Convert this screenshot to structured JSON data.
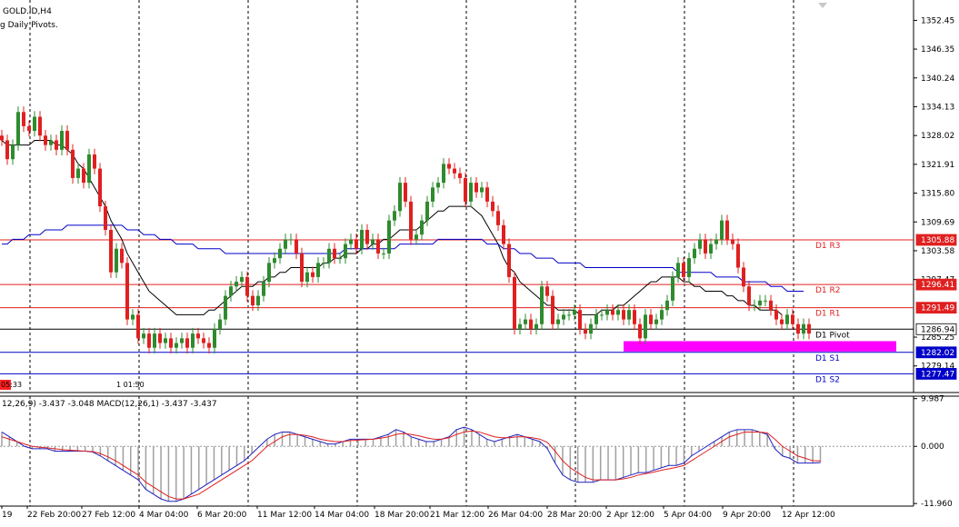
{
  "header": {
    "symbol": "GOLD.ID,H4",
    "indicator": "g Daily Pivots."
  },
  "status_labels": {
    "timer": "05:33",
    "bar_timer": "1 01:50",
    "macd_header": "12,26,9) -3.437 -3.048 MACD(12,26,1) -3.437 -3.437"
  },
  "colors": {
    "bull": "#2e8b2e",
    "bear": "#e02020",
    "ma_fast": "#000000",
    "ma_slow": "#0000c8",
    "resistance": "#e02020",
    "support": "#0000c8",
    "pivot": "#000000",
    "zone": "#ff00ff",
    "grid": "#000000",
    "macd_line": "#2020c0",
    "signal_line": "#e02020",
    "histogram": "#a0a0a0"
  },
  "chart_data": [
    {
      "type": "candlestick",
      "title": "GOLD.ID,H4",
      "subtitle": "g Daily Pivots.",
      "ylim": [
        1273.5,
        1356.0
      ],
      "y_ticks": [
        1352.45,
        1346.35,
        1340.24,
        1334.13,
        1328.02,
        1321.91,
        1315.8,
        1309.69,
        1303.58,
        1297.47,
        1285.25,
        1279.14
      ],
      "x_tick_labels": [
        "19",
        "22 Feb 20:00",
        "27 Feb 12:00",
        "4 Mar 04:00",
        "6 Mar 20:00",
        "11 Mar 12:00",
        "14 Mar 04:00",
        "18 Mar 20:00",
        "21 Mar 12:00",
        "26 Mar 04:00",
        "28 Mar 20:00",
        "2 Apr 12:00",
        "5 Apr 04:00",
        "9 Apr 20:00",
        "12 Apr 12:00"
      ],
      "price_labels": [
        {
          "label": "1305.88",
          "value": 1305.88,
          "kind": "resistance"
        },
        {
          "label": "1296.41",
          "value": 1296.41,
          "kind": "resistance"
        },
        {
          "label": "1291.49",
          "value": 1291.49,
          "kind": "resistance"
        },
        {
          "label": "1286.94",
          "value": 1286.94,
          "kind": "current"
        },
        {
          "label": "1282.02",
          "value": 1282.02,
          "kind": "support"
        },
        {
          "label": "1277.47",
          "value": 1277.47,
          "kind": "support"
        }
      ],
      "pivot_levels": [
        {
          "name": "D1 R3",
          "value": 1305.88,
          "kind": "resistance"
        },
        {
          "name": "D1 R2",
          "value": 1296.41,
          "kind": "resistance"
        },
        {
          "name": "D1 R1",
          "value": 1291.49,
          "kind": "resistance"
        },
        {
          "name": "D1 Pivot",
          "value": 1286.94,
          "kind": "pivot"
        },
        {
          "name": "D1 S1",
          "value": 1282.02,
          "kind": "support"
        },
        {
          "name": "D1 S2",
          "value": 1277.47,
          "kind": "support"
        }
      ],
      "support_zone": {
        "from_index": 114,
        "to_index": 164,
        "low": 1282.2,
        "high": 1284.4
      },
      "candles_close": [
        1327,
        1323,
        1326,
        1333,
        1330,
        1329,
        1332,
        1328,
        1326,
        1327,
        1325,
        1329,
        1325,
        1319,
        1321,
        1318,
        1324,
        1321,
        1313,
        1308,
        1299,
        1304,
        1301,
        1289,
        1290,
        1285,
        1286,
        1283,
        1286,
        1284,
        1285,
        1283,
        1284,
        1285,
        1283,
        1286,
        1285,
        1284,
        1283,
        1287,
        1289,
        1294,
        1296,
        1297,
        1298,
        1294,
        1292,
        1294,
        1297,
        1301,
        1302,
        1304,
        1306,
        1306,
        1303,
        1297,
        1299,
        1298,
        1301,
        1301,
        1304,
        1302,
        1302,
        1305,
        1306,
        1304,
        1308,
        1305,
        1306,
        1303,
        1303,
        1310,
        1312,
        1318,
        1314,
        1306,
        1307,
        1310,
        1314,
        1317,
        1318,
        1322,
        1321,
        1320,
        1319,
        1314,
        1318,
        1316,
        1317,
        1314,
        1312,
        1309,
        1305,
        1298,
        1287,
        1288,
        1289,
        1287,
        1288,
        1296,
        1294,
        1288,
        1289,
        1290,
        1290,
        1291,
        1287,
        1286,
        1288,
        1290,
        1290,
        1291,
        1290,
        1291,
        1289,
        1291,
        1288,
        1285,
        1290,
        1288,
        1289,
        1291,
        1293,
        1298,
        1301,
        1298,
        1302,
        1304,
        1306,
        1303,
        1305,
        1306,
        1310,
        1306,
        1305,
        1300,
        1296,
        1292,
        1292,
        1293,
        1293,
        1291,
        1289,
        1288,
        1290,
        1288,
        1286,
        1288,
        1286
      ],
      "series": [
        {
          "name": "MA fast",
          "values": [
            1327,
            1326,
            1326,
            1326,
            1326,
            1326,
            1327,
            1327,
            1327,
            1327,
            1326,
            1326,
            1325,
            1324,
            1322,
            1321,
            1319,
            1317,
            1315,
            1313,
            1310,
            1308,
            1306,
            1303,
            1301,
            1299,
            1297,
            1295,
            1294,
            1293,
            1292,
            1291,
            1290,
            1290,
            1290,
            1290,
            1290,
            1290,
            1291,
            1291,
            1292,
            1293,
            1294,
            1295,
            1296,
            1296,
            1296,
            1297,
            1297,
            1298,
            1298,
            1299,
            1299,
            1300,
            1300,
            1300,
            1300,
            1300,
            1300,
            1301,
            1301,
            1302,
            1302,
            1303,
            1303,
            1303,
            1304,
            1304,
            1305,
            1305,
            1306,
            1306,
            1307,
            1308,
            1308,
            1308,
            1308,
            1309,
            1310,
            1311,
            1312,
            1312,
            1313,
            1313,
            1313,
            1313,
            1313,
            1312,
            1311,
            1309,
            1307,
            1305,
            1302,
            1300,
            1299,
            1297,
            1296,
            1295,
            1294,
            1293,
            1292,
            1292,
            1291,
            1291,
            1291,
            1291,
            1290,
            1290,
            1290,
            1290,
            1291,
            1291,
            1291,
            1292,
            1292,
            1293,
            1294,
            1295,
            1296,
            1297,
            1297,
            1298,
            1298,
            1298,
            1298,
            1297,
            1297,
            1296,
            1296,
            1295,
            1295,
            1295,
            1295,
            1294,
            1294,
            1293,
            1293,
            1292,
            1292,
            1291,
            1291,
            1291,
            1291,
            1290
          ]
        },
        {
          "name": "MA slow",
          "values": [
            1305,
            1305,
            1306,
            1306,
            1306,
            1307,
            1307,
            1307,
            1308,
            1308,
            1308,
            1308,
            1309,
            1309,
            1309,
            1309,
            1309,
            1309,
            1309,
            1309,
            1309,
            1309,
            1309,
            1308,
            1308,
            1308,
            1307,
            1307,
            1307,
            1306,
            1306,
            1306,
            1305,
            1305,
            1305,
            1305,
            1304,
            1304,
            1304,
            1304,
            1304,
            1303,
            1303,
            1303,
            1303,
            1303,
            1303,
            1303,
            1303,
            1303,
            1303,
            1303,
            1303,
            1303,
            1303,
            1303,
            1303,
            1303,
            1303,
            1303,
            1303,
            1303,
            1303,
            1304,
            1304,
            1304,
            1304,
            1304,
            1304,
            1304,
            1304,
            1304,
            1304,
            1305,
            1305,
            1305,
            1305,
            1305,
            1305,
            1305,
            1306,
            1306,
            1306,
            1306,
            1306,
            1306,
            1306,
            1306,
            1306,
            1305,
            1305,
            1305,
            1304,
            1304,
            1304,
            1303,
            1303,
            1303,
            1302,
            1302,
            1302,
            1302,
            1301,
            1301,
            1301,
            1301,
            1301,
            1300,
            1300,
            1300,
            1300,
            1300,
            1300,
            1300,
            1300,
            1300,
            1300,
            1300,
            1300,
            1300,
            1300,
            1300,
            1300,
            1300,
            1299,
            1299,
            1299,
            1299,
            1299,
            1299,
            1299,
            1298,
            1298,
            1298,
            1298,
            1298,
            1297,
            1297,
            1297,
            1297,
            1297,
            1296,
            1296,
            1296,
            1295,
            1295,
            1295,
            1295
          ]
        }
      ]
    },
    {
      "type": "macd",
      "header": "12,26,9) -3.437 -3.048 MACD(12,26,1) -3.437 -3.437",
      "ylim": [
        -12.5,
        10.5
      ],
      "y_ticks": [
        9.987,
        0.0,
        -11.96
      ],
      "y_tick_labels": [
        "9.987",
        "0.000",
        "-11.960"
      ],
      "series": [
        {
          "name": "MACD",
          "values": [
            3,
            2,
            1,
            0,
            -0.5,
            -0.5,
            -0.5,
            -1,
            -1,
            -1,
            -1,
            -1,
            -1.2,
            -2,
            -3,
            -4,
            -5,
            -6,
            -7,
            -9,
            -10,
            -11,
            -11.5,
            -11.5,
            -11,
            -10,
            -9,
            -8,
            -7,
            -6,
            -5,
            -4,
            -3,
            -1.5,
            0,
            1.5,
            2.5,
            3,
            3,
            2.5,
            2,
            1.5,
            1,
            0.5,
            0.5,
            1,
            1.5,
            1.5,
            1.5,
            1.5,
            2,
            2.5,
            3.5,
            3,
            2,
            1.5,
            1,
            1,
            1.5,
            2,
            3.5,
            4,
            3.5,
            2.5,
            1.5,
            1,
            1.5,
            2,
            2.5,
            2,
            1.5,
            1,
            -0.5,
            -3.5,
            -6,
            -7,
            -7.5,
            -7.5,
            -7.5,
            -7,
            -7,
            -7,
            -6.5,
            -6,
            -5.5,
            -5.5,
            -5,
            -4.5,
            -4,
            -4,
            -3.5,
            -2,
            -1,
            0,
            1,
            2,
            3,
            3.5,
            3.5,
            3.5,
            3,
            2.5,
            -0.5,
            -2,
            -2.5,
            -3.5,
            -3.5,
            -3.5,
            -3.4
          ]
        },
        {
          "name": "Signal",
          "values": [
            2,
            1.5,
            1,
            0.5,
            0,
            -0.2,
            -0.3,
            -0.5,
            -0.7,
            -0.8,
            -0.9,
            -1,
            -1.1,
            -1.5,
            -2.2,
            -3,
            -4,
            -5,
            -6,
            -7.5,
            -8.5,
            -9.5,
            -10.5,
            -11,
            -11,
            -10.5,
            -10,
            -9,
            -8,
            -7,
            -6,
            -5,
            -4,
            -3,
            -1.5,
            0,
            1,
            2,
            2.5,
            2.5,
            2.3,
            2,
            1.5,
            1.2,
            1,
            1,
            1.2,
            1.3,
            1.4,
            1.5,
            1.7,
            2,
            2.5,
            2.7,
            2.5,
            2.2,
            1.8,
            1.5,
            1.5,
            1.8,
            2.5,
            3,
            3.2,
            3,
            2.5,
            2,
            1.8,
            1.8,
            2,
            2,
            1.8,
            1.5,
            0.8,
            -1,
            -3,
            -4.5,
            -5.5,
            -6.5,
            -7,
            -7,
            -7,
            -7,
            -6.8,
            -6.5,
            -6,
            -5.7,
            -5.4,
            -5,
            -4.7,
            -4.4,
            -4,
            -3,
            -2,
            -1,
            0,
            1,
            2,
            2.5,
            3,
            3,
            3,
            2.8,
            1.5,
            0,
            -1,
            -2,
            -2.5,
            -3,
            -3.05
          ]
        }
      ]
    }
  ]
}
